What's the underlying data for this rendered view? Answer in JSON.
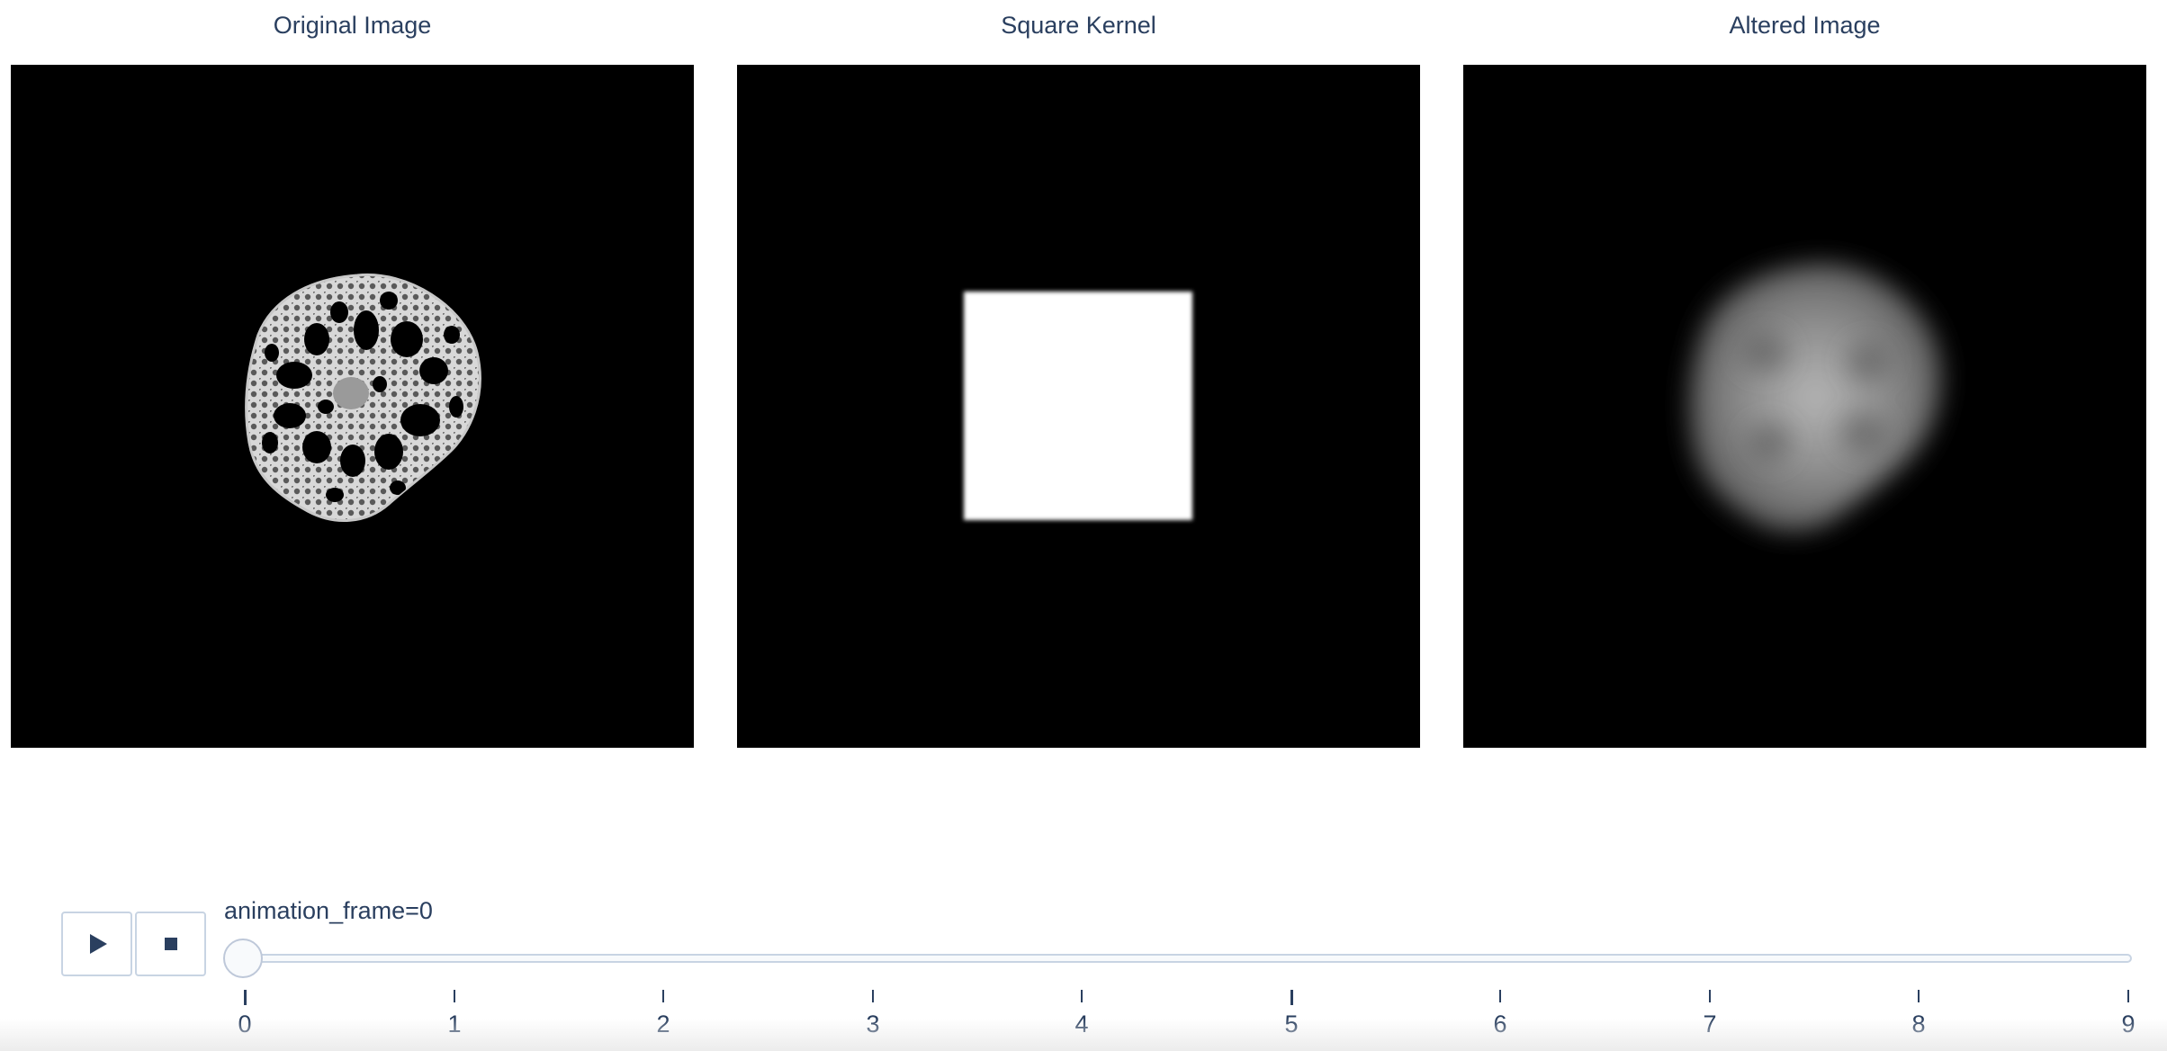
{
  "panels": [
    {
      "title": "Original Image"
    },
    {
      "title": "Square Kernel"
    },
    {
      "title": "Altered Image"
    }
  ],
  "controls": {
    "play_icon": "play-icon",
    "stop_icon": "stop-icon",
    "slider_label": "animation_frame=0",
    "current_frame": 0,
    "ticks": [
      "0",
      "1",
      "2",
      "3",
      "4",
      "5",
      "6",
      "7",
      "8",
      "9"
    ]
  },
  "colors": {
    "text": "#2a3f5f",
    "panel_bg": "#000000",
    "slider_border": "#c8d4e3"
  }
}
